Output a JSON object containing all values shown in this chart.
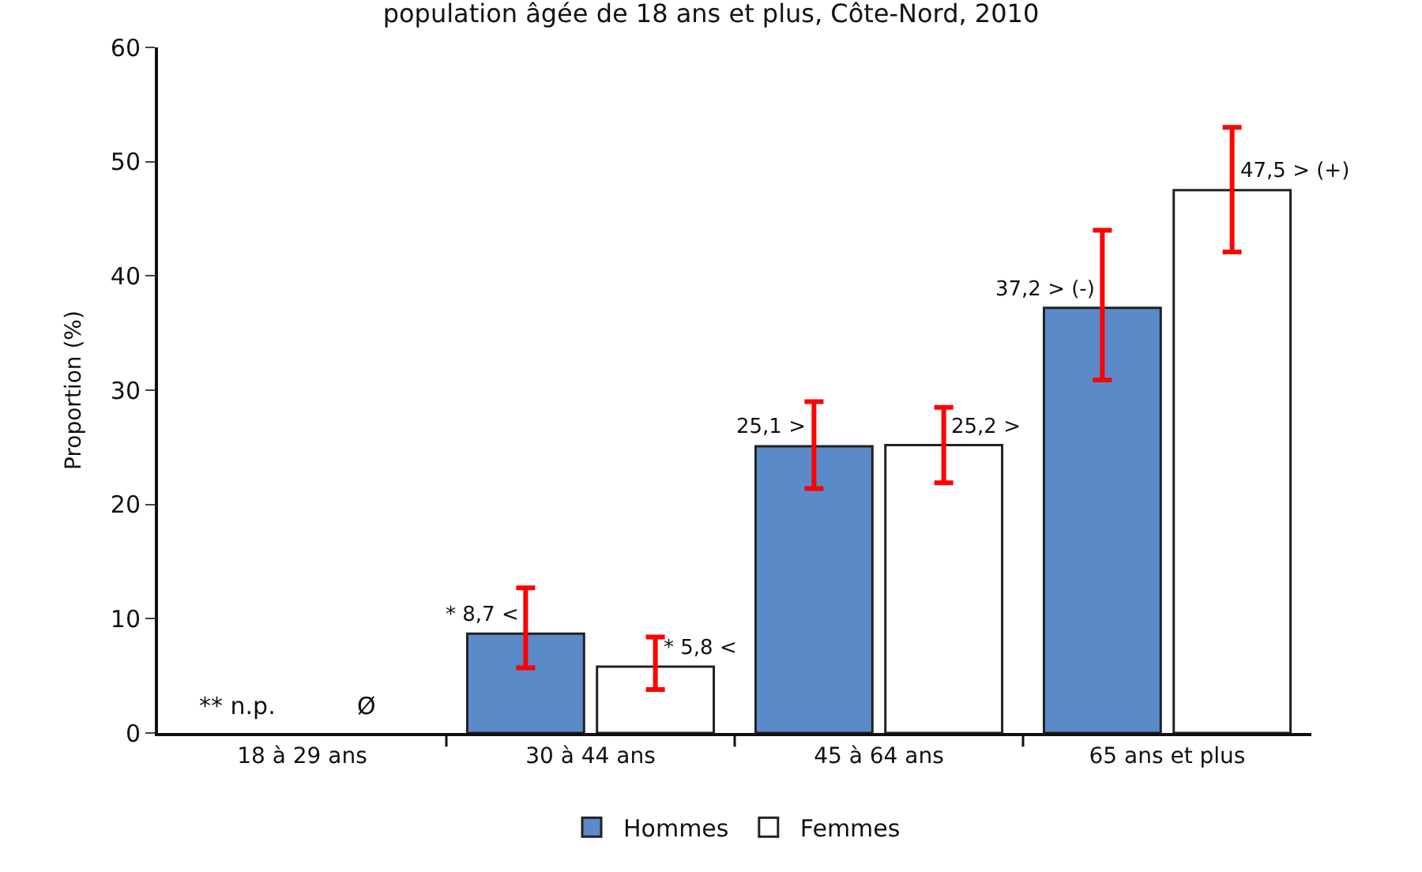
{
  "chart_data": {
    "type": "bar",
    "title": "population âgée de 18 ans et plus, Côte-Nord, 2010",
    "ylabel": "Proportion (%)",
    "categories": [
      "18 à 29 ans",
      "30 à 44 ans",
      "45 à 64 ans",
      "65 ans et plus"
    ],
    "series": [
      {
        "name": "Hommes",
        "color": "#5b8ac9",
        "values": [
          null,
          8.7,
          25.1,
          37.2
        ],
        "errors": [
          null,
          [
            5.7,
            12.7
          ],
          [
            21.4,
            29.0
          ],
          [
            30.9,
            44.0
          ]
        ],
        "value_labels": [
          "** n.p.",
          "* 8,7 <",
          "25,1 >",
          "37,2 > (-)"
        ]
      },
      {
        "name": "Femmes",
        "color": "#ffffff",
        "values": [
          null,
          5.8,
          25.2,
          47.5
        ],
        "errors": [
          null,
          [
            3.8,
            8.4
          ],
          [
            21.9,
            28.5
          ],
          [
            42.1,
            53.0
          ]
        ],
        "value_labels": [
          "Ø",
          "* 5,8 <",
          "25,2 >",
          "47,5 > (+)"
        ]
      }
    ],
    "ylim": [
      0,
      60
    ],
    "yticks": [
      0,
      10,
      20,
      30,
      40,
      50,
      60
    ],
    "grid": false,
    "legend": "bottom"
  }
}
